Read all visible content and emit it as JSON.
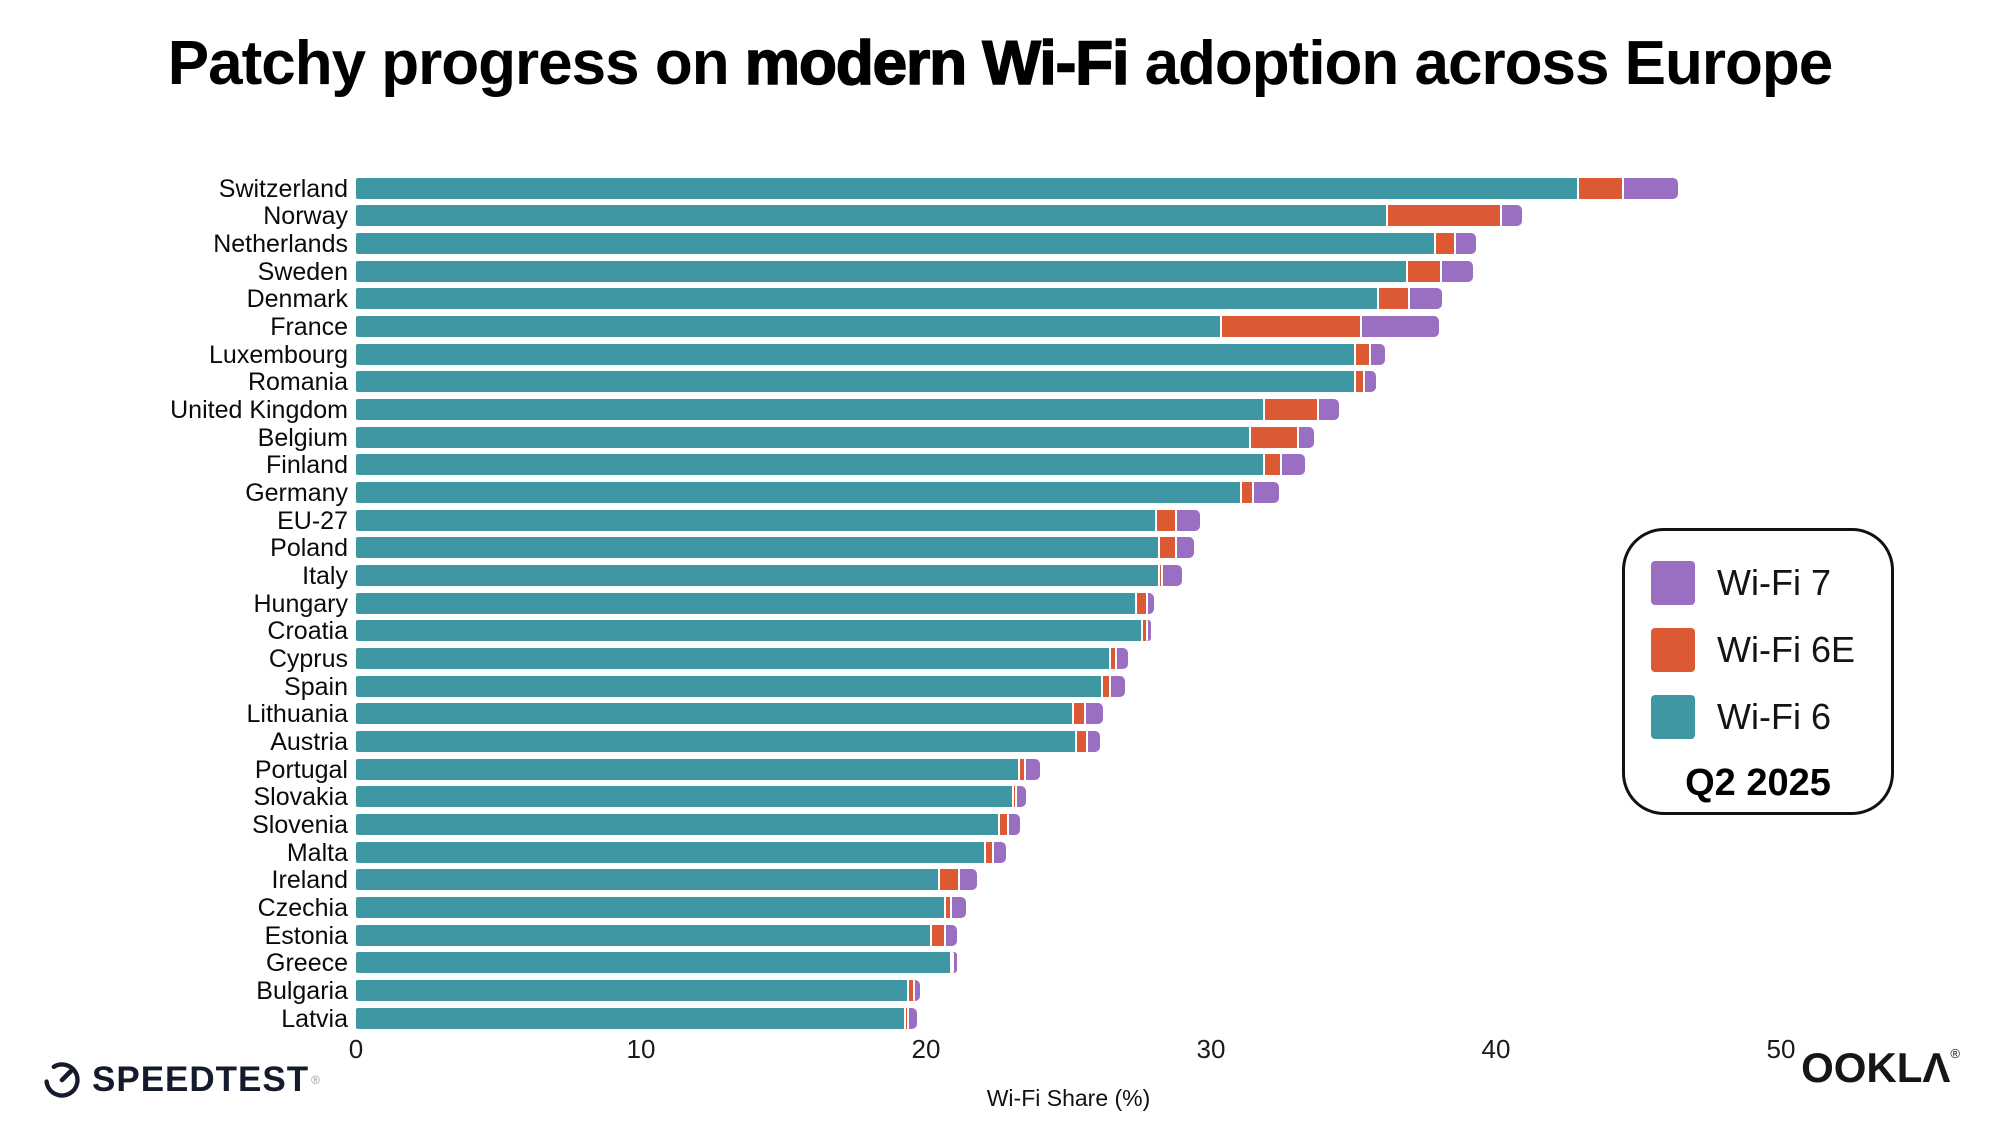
{
  "title": {
    "prefix": "Patchy progress on ",
    "emphasis": "modern Wi-Fi",
    "suffix": " adoption across Europe"
  },
  "chart_data": {
    "type": "bar",
    "orientation": "horizontal",
    "stacked": true,
    "title": "Patchy progress on modern Wi-Fi adoption across Europe",
    "xlabel": "Wi-Fi Share (%)",
    "xlim": [
      0,
      55
    ],
    "xticks": [
      0,
      10,
      20,
      30,
      40,
      50
    ],
    "grid": false,
    "categories": [
      "Switzerland",
      "Norway",
      "Netherlands",
      "Sweden",
      "Denmark",
      "France",
      "Luxembourg",
      "Romania",
      "United Kingdom",
      "Belgium",
      "Finland",
      "Germany",
      "EU-27",
      "Poland",
      "Italy",
      "Hungary",
      "Croatia",
      "Cyprus",
      "Spain",
      "Lithuania",
      "Austria",
      "Portugal",
      "Slovakia",
      "Slovenia",
      "Malta",
      "Ireland",
      "Czechia",
      "Estonia",
      "Greece",
      "Bulgaria",
      "Latvia"
    ],
    "series": [
      {
        "name": "Wi-Fi 6",
        "key": "wifi6",
        "color": "#3E97A3",
        "values": [
          42.9,
          36.2,
          37.9,
          36.9,
          35.9,
          30.4,
          35.1,
          35.1,
          31.9,
          31.4,
          31.9,
          31.1,
          28.1,
          28.2,
          28.2,
          27.4,
          27.6,
          26.5,
          26.2,
          25.2,
          25.3,
          23.3,
          23.1,
          22.6,
          22.1,
          20.5,
          20.7,
          20.2,
          20.9,
          19.4,
          19.3
        ]
      },
      {
        "name": "Wi-Fi 6E",
        "key": "wifi6e",
        "color": "#DB5A33",
        "values": [
          1.6,
          4.0,
          0.7,
          1.2,
          1.1,
          4.9,
          0.5,
          0.3,
          1.9,
          1.7,
          0.6,
          0.4,
          0.7,
          0.6,
          0.1,
          0.4,
          0.2,
          0.2,
          0.3,
          0.4,
          0.4,
          0.2,
          0.1,
          0.3,
          0.3,
          0.7,
          0.2,
          0.5,
          0.1,
          0.2,
          0.1
        ]
      },
      {
        "name": "Wi-Fi 7",
        "key": "wifi7",
        "color": "#9A6FC2",
        "values": [
          1.9,
          0.7,
          0.7,
          1.1,
          1.1,
          2.7,
          0.5,
          0.4,
          0.7,
          0.5,
          0.8,
          0.9,
          0.8,
          0.6,
          0.7,
          0.2,
          0.1,
          0.4,
          0.5,
          0.6,
          0.4,
          0.5,
          0.3,
          0.4,
          0.4,
          0.6,
          0.5,
          0.4,
          0.1,
          0.2,
          0.3
        ]
      }
    ],
    "legend": {
      "position": "right",
      "period": "Q2 2025",
      "items": [
        {
          "label": "Wi-Fi 7",
          "color": "#9A6FC2"
        },
        {
          "label": "Wi-Fi 6E",
          "color": "#DB5A33"
        },
        {
          "label": "Wi-Fi 6",
          "color": "#3E97A3"
        }
      ]
    }
  },
  "footer": {
    "speedtest": {
      "label": "SPEEDTEST",
      "mark": "®",
      "color": "#151a2d"
    },
    "ookla": {
      "label": "OOKLA",
      "mark": "®",
      "color": "#161616"
    }
  }
}
